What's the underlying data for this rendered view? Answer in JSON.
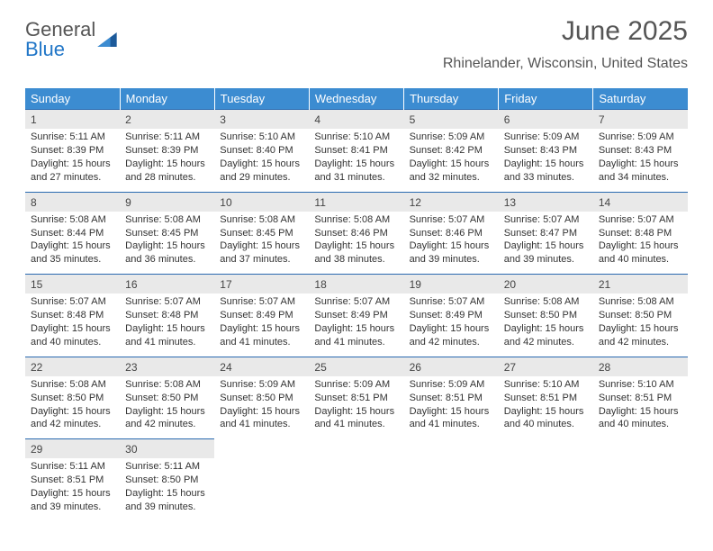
{
  "brand": {
    "general": "General",
    "blue": "Blue"
  },
  "header": {
    "title": "June 2025",
    "subtitle": "Rhinelander, Wisconsin, United States"
  },
  "colors": {
    "header_bg": "#3c8cd1",
    "header_text": "#ffffff",
    "daynum_bg": "#e9e9e9",
    "rule": "#2a6ab0",
    "body_text": "#333333",
    "logo_blue": "#2176c7",
    "logo_grey": "#555555"
  },
  "weekdays": [
    "Sunday",
    "Monday",
    "Tuesday",
    "Wednesday",
    "Thursday",
    "Friday",
    "Saturday"
  ],
  "weeks": [
    [
      {
        "n": "1",
        "sr": "Sunrise: 5:11 AM",
        "ss": "Sunset: 8:39 PM",
        "dl": "Daylight: 15 hours and 27 minutes."
      },
      {
        "n": "2",
        "sr": "Sunrise: 5:11 AM",
        "ss": "Sunset: 8:39 PM",
        "dl": "Daylight: 15 hours and 28 minutes."
      },
      {
        "n": "3",
        "sr": "Sunrise: 5:10 AM",
        "ss": "Sunset: 8:40 PM",
        "dl": "Daylight: 15 hours and 29 minutes."
      },
      {
        "n": "4",
        "sr": "Sunrise: 5:10 AM",
        "ss": "Sunset: 8:41 PM",
        "dl": "Daylight: 15 hours and 31 minutes."
      },
      {
        "n": "5",
        "sr": "Sunrise: 5:09 AM",
        "ss": "Sunset: 8:42 PM",
        "dl": "Daylight: 15 hours and 32 minutes."
      },
      {
        "n": "6",
        "sr": "Sunrise: 5:09 AM",
        "ss": "Sunset: 8:43 PM",
        "dl": "Daylight: 15 hours and 33 minutes."
      },
      {
        "n": "7",
        "sr": "Sunrise: 5:09 AM",
        "ss": "Sunset: 8:43 PM",
        "dl": "Daylight: 15 hours and 34 minutes."
      }
    ],
    [
      {
        "n": "8",
        "sr": "Sunrise: 5:08 AM",
        "ss": "Sunset: 8:44 PM",
        "dl": "Daylight: 15 hours and 35 minutes."
      },
      {
        "n": "9",
        "sr": "Sunrise: 5:08 AM",
        "ss": "Sunset: 8:45 PM",
        "dl": "Daylight: 15 hours and 36 minutes."
      },
      {
        "n": "10",
        "sr": "Sunrise: 5:08 AM",
        "ss": "Sunset: 8:45 PM",
        "dl": "Daylight: 15 hours and 37 minutes."
      },
      {
        "n": "11",
        "sr": "Sunrise: 5:08 AM",
        "ss": "Sunset: 8:46 PM",
        "dl": "Daylight: 15 hours and 38 minutes."
      },
      {
        "n": "12",
        "sr": "Sunrise: 5:07 AM",
        "ss": "Sunset: 8:46 PM",
        "dl": "Daylight: 15 hours and 39 minutes."
      },
      {
        "n": "13",
        "sr": "Sunrise: 5:07 AM",
        "ss": "Sunset: 8:47 PM",
        "dl": "Daylight: 15 hours and 39 minutes."
      },
      {
        "n": "14",
        "sr": "Sunrise: 5:07 AM",
        "ss": "Sunset: 8:48 PM",
        "dl": "Daylight: 15 hours and 40 minutes."
      }
    ],
    [
      {
        "n": "15",
        "sr": "Sunrise: 5:07 AM",
        "ss": "Sunset: 8:48 PM",
        "dl": "Daylight: 15 hours and 40 minutes."
      },
      {
        "n": "16",
        "sr": "Sunrise: 5:07 AM",
        "ss": "Sunset: 8:48 PM",
        "dl": "Daylight: 15 hours and 41 minutes."
      },
      {
        "n": "17",
        "sr": "Sunrise: 5:07 AM",
        "ss": "Sunset: 8:49 PM",
        "dl": "Daylight: 15 hours and 41 minutes."
      },
      {
        "n": "18",
        "sr": "Sunrise: 5:07 AM",
        "ss": "Sunset: 8:49 PM",
        "dl": "Daylight: 15 hours and 41 minutes."
      },
      {
        "n": "19",
        "sr": "Sunrise: 5:07 AM",
        "ss": "Sunset: 8:49 PM",
        "dl": "Daylight: 15 hours and 42 minutes."
      },
      {
        "n": "20",
        "sr": "Sunrise: 5:08 AM",
        "ss": "Sunset: 8:50 PM",
        "dl": "Daylight: 15 hours and 42 minutes."
      },
      {
        "n": "21",
        "sr": "Sunrise: 5:08 AM",
        "ss": "Sunset: 8:50 PM",
        "dl": "Daylight: 15 hours and 42 minutes."
      }
    ],
    [
      {
        "n": "22",
        "sr": "Sunrise: 5:08 AM",
        "ss": "Sunset: 8:50 PM",
        "dl": "Daylight: 15 hours and 42 minutes."
      },
      {
        "n": "23",
        "sr": "Sunrise: 5:08 AM",
        "ss": "Sunset: 8:50 PM",
        "dl": "Daylight: 15 hours and 42 minutes."
      },
      {
        "n": "24",
        "sr": "Sunrise: 5:09 AM",
        "ss": "Sunset: 8:50 PM",
        "dl": "Daylight: 15 hours and 41 minutes."
      },
      {
        "n": "25",
        "sr": "Sunrise: 5:09 AM",
        "ss": "Sunset: 8:51 PM",
        "dl": "Daylight: 15 hours and 41 minutes."
      },
      {
        "n": "26",
        "sr": "Sunrise: 5:09 AM",
        "ss": "Sunset: 8:51 PM",
        "dl": "Daylight: 15 hours and 41 minutes."
      },
      {
        "n": "27",
        "sr": "Sunrise: 5:10 AM",
        "ss": "Sunset: 8:51 PM",
        "dl": "Daylight: 15 hours and 40 minutes."
      },
      {
        "n": "28",
        "sr": "Sunrise: 5:10 AM",
        "ss": "Sunset: 8:51 PM",
        "dl": "Daylight: 15 hours and 40 minutes."
      }
    ],
    [
      {
        "n": "29",
        "sr": "Sunrise: 5:11 AM",
        "ss": "Sunset: 8:51 PM",
        "dl": "Daylight: 15 hours and 39 minutes."
      },
      {
        "n": "30",
        "sr": "Sunrise: 5:11 AM",
        "ss": "Sunset: 8:50 PM",
        "dl": "Daylight: 15 hours and 39 minutes."
      },
      null,
      null,
      null,
      null,
      null
    ]
  ]
}
